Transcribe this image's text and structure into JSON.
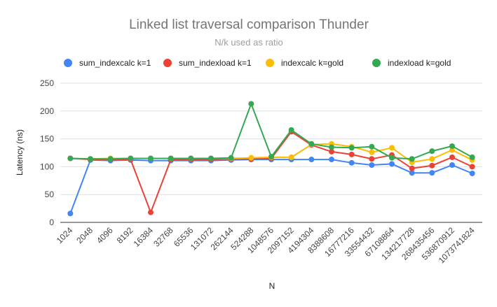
{
  "chart_data": {
    "type": "line",
    "title": "Linked list traversal comparison Thunder",
    "subtitle": "N/k used as ratio",
    "xlabel": "N",
    "ylabel": "Latency (ns)",
    "ylim": [
      0,
      250
    ],
    "yticks": [
      0,
      50,
      100,
      150,
      200,
      250
    ],
    "grid": true,
    "legend_position": "top",
    "categories": [
      "1024",
      "2048",
      "4096",
      "8192",
      "16384",
      "32768",
      "65536",
      "131072",
      "262144",
      "524288",
      "1048576",
      "2097152",
      "4194304",
      "8388608",
      "16777216",
      "33554432",
      "67108864",
      "134217728",
      "268435456",
      "536870912",
      "1073741824"
    ],
    "series": [
      {
        "name": "sum_indexcalc k=1",
        "color": "#4285f4",
        "values": [
          16,
          112,
          111,
          112,
          111,
          111,
          111,
          111,
          112,
          113,
          113,
          113,
          113,
          113,
          107,
          103,
          105,
          89,
          89,
          103,
          88
        ]
      },
      {
        "name": "sum_indexload k=1",
        "color": "#ea4335",
        "values": [
          115,
          113,
          113,
          113,
          18,
          113,
          113,
          113,
          114,
          114,
          115,
          163,
          139,
          127,
          122,
          114,
          121,
          97,
          102,
          117,
          100
        ]
      },
      {
        "name": "indexcalc k=gold",
        "color": "#fbbc04",
        "values": [
          115,
          114,
          115,
          115,
          115,
          115,
          115,
          115,
          115,
          116,
          117,
          117,
          140,
          141,
          136,
          126,
          134,
          108,
          114,
          130,
          112
        ]
      },
      {
        "name": "indexload k=gold",
        "color": "#34a853",
        "values": [
          115,
          114,
          114,
          115,
          115,
          115,
          115,
          115,
          116,
          213,
          118,
          166,
          141,
          135,
          134,
          136,
          116,
          114,
          128,
          137,
          117
        ]
      }
    ]
  }
}
